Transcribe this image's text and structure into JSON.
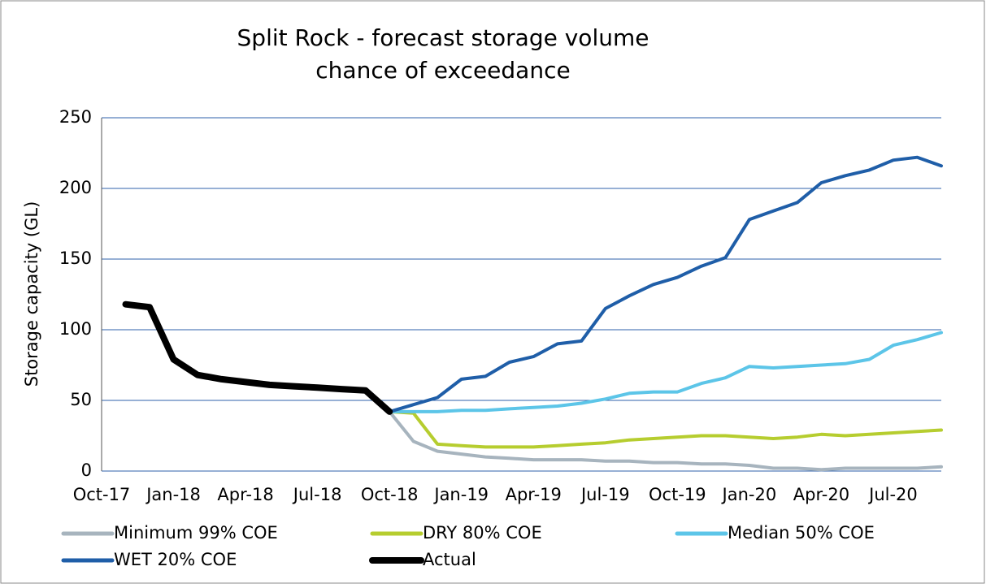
{
  "chart_data": {
    "type": "line",
    "title": [
      "Split Rock - forecast storage volume",
      "chance of exceedance"
    ],
    "y_label": "Storage capacity (GL)",
    "categories": [
      "Oct-17",
      null,
      null,
      "Jan-18",
      null,
      null,
      "Apr-18",
      null,
      null,
      "Jul-18",
      null,
      null,
      "Oct-18",
      null,
      null,
      "Jan-19",
      null,
      null,
      "Apr-19",
      null,
      null,
      "Jul-19",
      null,
      null,
      "Oct-19",
      null,
      null,
      "Jan-20",
      null,
      null,
      "Apr-20",
      null,
      null,
      "Jul-20",
      null,
      null
    ],
    "ylim": [
      0,
      250
    ],
    "yticks": [
      0,
      50,
      100,
      150,
      200,
      250
    ],
    "grid": true,
    "series": [
      {
        "name": "Minimum 99% COE",
        "color": "#a7b4be",
        "values": [
          null,
          null,
          null,
          null,
          null,
          null,
          null,
          null,
          null,
          null,
          null,
          null,
          42,
          21,
          14,
          12,
          10,
          9,
          8,
          8,
          8,
          7,
          7,
          6,
          6,
          5,
          5,
          4,
          2,
          2,
          1,
          2,
          2,
          2,
          2,
          3
        ]
      },
      {
        "name": "DRY 80% COE",
        "color": "#b6cd2f",
        "values": [
          null,
          null,
          null,
          null,
          null,
          null,
          null,
          null,
          null,
          null,
          null,
          null,
          42,
          41,
          19,
          18,
          17,
          17,
          17,
          18,
          19,
          20,
          22,
          23,
          24,
          25,
          25,
          24,
          23,
          24,
          26,
          25,
          26,
          27,
          28,
          29
        ]
      },
      {
        "name": "Median 50% COE",
        "color": "#5cc5e8",
        "values": [
          null,
          null,
          null,
          null,
          null,
          null,
          null,
          null,
          null,
          null,
          null,
          null,
          42,
          42,
          42,
          43,
          43,
          44,
          45,
          46,
          48,
          51,
          55,
          56,
          56,
          62,
          66,
          74,
          73,
          74,
          75,
          76,
          79,
          89,
          93,
          98
        ]
      },
      {
        "name": "WET 20% COE",
        "color": "#1f5ea8",
        "values": [
          null,
          null,
          null,
          null,
          null,
          null,
          null,
          null,
          null,
          null,
          null,
          null,
          42,
          47,
          52,
          65,
          67,
          77,
          81,
          90,
          92,
          115,
          124,
          132,
          137,
          145,
          151,
          178,
          184,
          190,
          204,
          209,
          213,
          220,
          222,
          216
        ]
      },
      {
        "name": "Actual",
        "color": "#000000",
        "values": [
          null,
          118,
          116,
          79,
          68,
          65,
          63,
          61,
          60,
          59,
          58,
          57,
          42,
          null,
          null,
          null,
          null,
          null,
          null,
          null,
          null,
          null,
          null,
          null,
          null,
          null,
          null,
          null,
          null,
          null,
          null,
          null,
          null,
          null,
          null,
          null
        ]
      }
    ]
  }
}
